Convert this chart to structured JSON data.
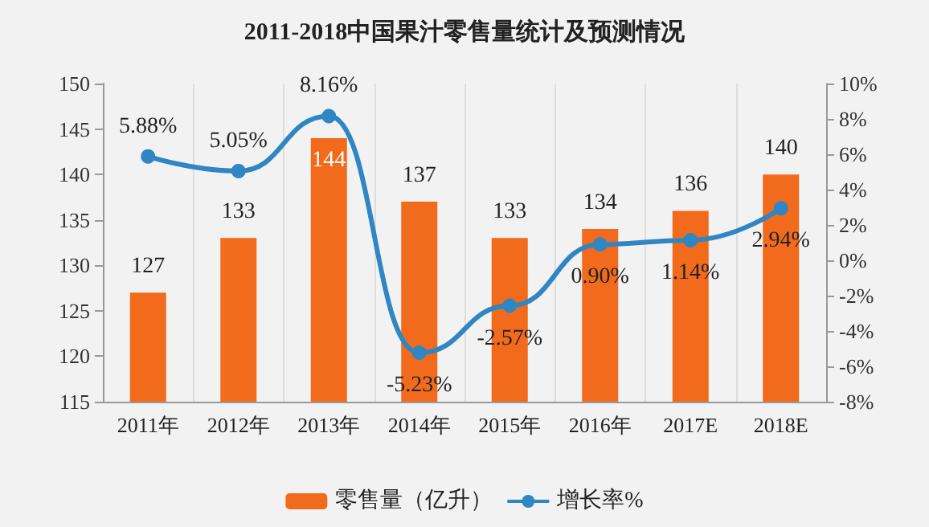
{
  "chart_data": {
    "type": "bar",
    "title": "2011-2018中国果汁零售量统计及预测情况",
    "categories": [
      "2011年",
      "2012年",
      "2013年",
      "2014年",
      "2015年",
      "2016年",
      "2017E",
      "2018E"
    ],
    "series": [
      {
        "name": "零售量（亿升）",
        "type": "bar",
        "color": "#f26b1d",
        "values": [
          127,
          133,
          144,
          137,
          133,
          134,
          136,
          140
        ],
        "value_labels": [
          "127",
          "133",
          "144",
          "137",
          "133",
          "134",
          "136",
          "140"
        ]
      },
      {
        "name": "增长率%",
        "type": "line",
        "axis": "y2",
        "color": "#2f86c2",
        "marker": "circle",
        "values": [
          5.88,
          5.05,
          8.16,
          -5.23,
          -2.57,
          0.9,
          1.14,
          2.94
        ],
        "value_labels": [
          "5.88%",
          "5.05%",
          "8.16%",
          "-5.23%",
          "-2.57%",
          "0.90%",
          "1.14%",
          "2.94%"
        ]
      }
    ],
    "ylim": [
      115,
      150
    ],
    "yticks": [
      115,
      120,
      125,
      130,
      135,
      140,
      145,
      150
    ],
    "y2lim": [
      -8,
      10
    ],
    "y2ticks": [
      {
        "value": -8,
        "label": "-8%"
      },
      {
        "value": -6,
        "label": "-6%"
      },
      {
        "value": -4,
        "label": "-4%"
      },
      {
        "value": -2,
        "label": "-2%"
      },
      {
        "value": 0,
        "label": "0%"
      },
      {
        "value": 2,
        "label": "2%"
      },
      {
        "value": 4,
        "label": "4%"
      },
      {
        "value": 6,
        "label": "6%"
      },
      {
        "value": 8,
        "label": "8%"
      },
      {
        "value": 10,
        "label": "10%"
      }
    ],
    "grid": "x",
    "legend": "bottom"
  }
}
